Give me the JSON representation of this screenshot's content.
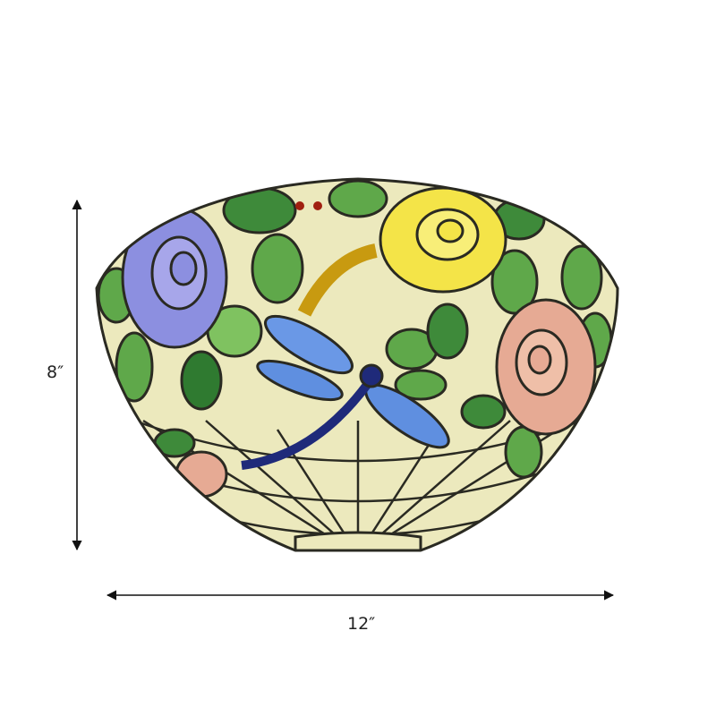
{
  "dimensions": {
    "height_label": "8″",
    "width_label": "12″"
  },
  "colors": {
    "glass_base": "#ece9bd",
    "lead_lines": "#2a2a22",
    "rose_blue": "#8c8fe0",
    "rose_yellow": "#f4e448",
    "rose_pink": "#e6aa94",
    "leaf_green": "#5fa84a",
    "dragonfly_blue": "#5f8fe0"
  }
}
